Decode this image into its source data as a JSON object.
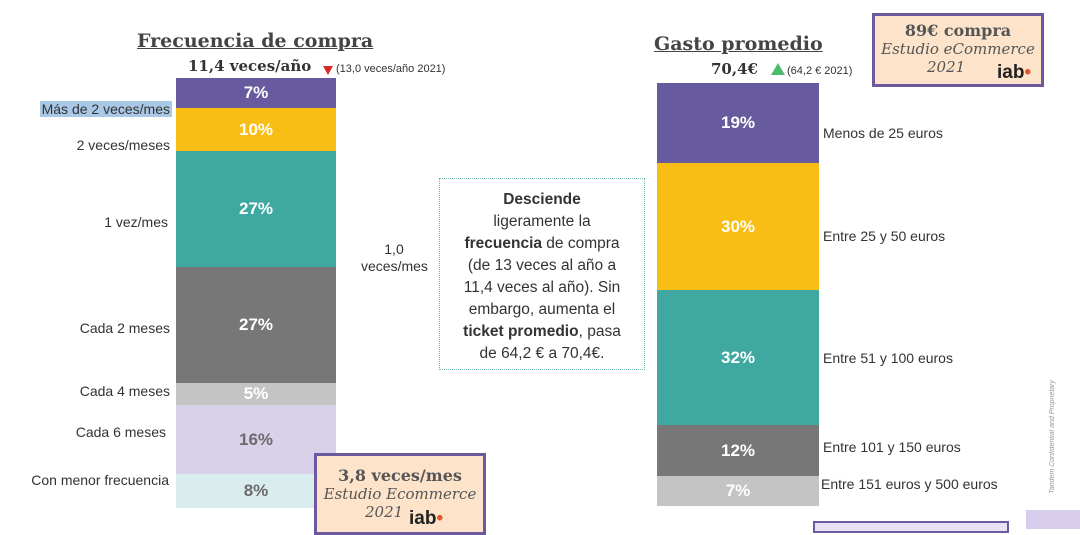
{
  "left_chart": {
    "title": "Frecuencia de compra",
    "headline": "11,4 veces/año",
    "previous": "(13,0 veces/año 2021)",
    "trend": "down",
    "side_note": "1,0 veces/mes",
    "categories": [
      "Más de 2 veces/mes",
      "2 veces/meses",
      "1 vez/mes",
      "Cada 2 meses",
      "Cada 4 meses",
      "Cada 6 meses",
      "Con menor frecuencia"
    ],
    "value_labels": [
      "7%",
      "10%",
      "27%",
      "27%",
      "5%",
      "16%",
      "8%"
    ]
  },
  "right_chart": {
    "title": "Gasto promedio",
    "headline": "70,4€",
    "previous": "(64,2 € 2021)",
    "trend": "up",
    "categories": [
      "Menos de 25 euros",
      "Entre 25 y 50 euros",
      "Entre 51 y 100 euros",
      "Entre 101 y 150 euros",
      "Entre 151 euros y 500 euros"
    ],
    "value_labels": [
      "19%",
      "30%",
      "32%",
      "12%",
      "7%"
    ]
  },
  "callout": {
    "line1_bold": "Desciende",
    "line2": "ligeramente la",
    "line3_bold": "frecuencia",
    "line3_rest": " de compra",
    "line4": "(de 13 veces al año a",
    "line5": "11,4 veces al año). Sin",
    "line6": "embargo, aumenta el",
    "line7_bold": "ticket promedio",
    "line7_rest": ", pasa",
    "line8": "de 64,2 € a 70,4€."
  },
  "box_top": {
    "line1": "89€ compra",
    "line2": "Estudio eCommerce",
    "line3": "2021",
    "logo": "iab"
  },
  "box_bottom": {
    "line1": "3,8 veces/mes",
    "line2": "Estudio Ecommerce",
    "line3": "2021",
    "logo": "iab"
  },
  "footer_vertical": "Tandem Confidential and Proprietary",
  "chart_data": [
    {
      "type": "bar",
      "stacked": true,
      "title": "Frecuencia de compra",
      "categories": [
        "Más de 2 veces/mes",
        "2 veces/meses",
        "1 vez/mes",
        "Cada 2 meses",
        "Cada 4 meses",
        "Cada 6 meses",
        "Con menor frecuencia"
      ],
      "values": [
        7,
        10,
        27,
        27,
        5,
        16,
        8
      ],
      "colors": [
        "#675a9f",
        "#f8be16",
        "#3fa8a0",
        "#777777",
        "#c4c4c4",
        "#d9d0e9",
        "#daedee"
      ],
      "text_colors": [
        "#ffffff",
        "#ffffff",
        "#ffffff",
        "#ffffff",
        "#ffffff",
        "#6b6b6b",
        "#6b6b6b"
      ]
    },
    {
      "type": "bar",
      "stacked": true,
      "title": "Gasto promedio",
      "categories": [
        "Menos de 25 euros",
        "Entre 25 y 50 euros",
        "Entre 51 y 100 euros",
        "Entre 101 y 150 euros",
        "Entre 151 euros y 500 euros"
      ],
      "values": [
        19,
        30,
        32,
        12,
        7
      ],
      "colors": [
        "#675a9f",
        "#f8be16",
        "#3fa8a0",
        "#777777",
        "#c4c4c4"
      ],
      "text_colors": [
        "#ffffff",
        "#ffffff",
        "#ffffff",
        "#ffffff",
        "#ffffff"
      ]
    }
  ],
  "colors": {
    "accent_purple": "#6c5a9e",
    "box_fill": "#fce3c9",
    "trend_down": "#d42a2a",
    "trend_up": "#4cbb6a"
  }
}
